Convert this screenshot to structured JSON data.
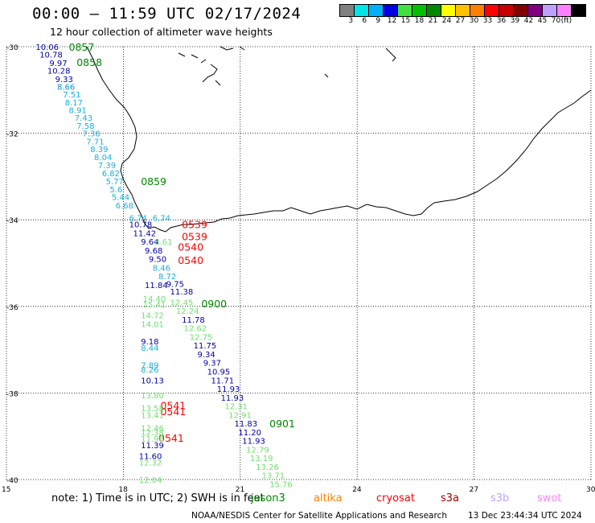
{
  "title": "00:00 — 11:59 UTC 02/17/2024",
  "subtitle": "12 hour collection of altimeter wave heights",
  "legend": {
    "colors": [
      "#808080",
      "#00e5e5",
      "#00b0ff",
      "#0000e0",
      "#40e040",
      "#00c000",
      "#008800",
      "#ffff00",
      "#ffc000",
      "#ff8000",
      "#ff0000",
      "#c80000",
      "#800000",
      "#800080",
      "#c0a0ff",
      "#ff80ff",
      "#000000"
    ],
    "labels": [
      "3",
      "6",
      "9",
      "12",
      "15",
      "18",
      "21",
      "24",
      "27",
      "30",
      "33",
      "36",
      "39",
      "42",
      "45",
      "70",
      "(ft)"
    ]
  },
  "axes": {
    "lat_labels": [
      "-30",
      "-32",
      "-34",
      "-36",
      "-38",
      "-40"
    ],
    "lon_labels": [
      "15",
      "18",
      "21",
      "24",
      "27",
      "30"
    ]
  },
  "passes": [
    {
      "label": "0857",
      "color": "#008800",
      "lon": 16.6,
      "lat": -30.0
    },
    {
      "label": "0858",
      "color": "#008800",
      "lon": 16.8,
      "lat": -30.35
    },
    {
      "label": "0859",
      "color": "#008800",
      "lon": 18.45,
      "lat": -33.1
    },
    {
      "label": "0539",
      "color": "#ff0000",
      "lon": 19.5,
      "lat": -34.1
    },
    {
      "label": "0539",
      "color": "#ff0000",
      "lon": 19.5,
      "lat": -34.38
    },
    {
      "label": "0540",
      "color": "#ff0000",
      "lon": 19.4,
      "lat": -34.62
    },
    {
      "label": "0540",
      "color": "#ff0000",
      "lon": 19.4,
      "lat": -34.93
    },
    {
      "label": "0900",
      "color": "#008800",
      "lon": 20.0,
      "lat": -35.93
    },
    {
      "label": "0541",
      "color": "#ff0000",
      "lon": 18.95,
      "lat": -38.28
    },
    {
      "label": "0541",
      "color": "#ff0000",
      "lon": 18.95,
      "lat": -38.42
    },
    {
      "label": "0541",
      "color": "#ff0000",
      "lon": 18.9,
      "lat": -39.03
    },
    {
      "label": "0901",
      "color": "#008800",
      "lon": 21.75,
      "lat": -38.7
    }
  ],
  "wave_heights": [
    {
      "text": "10.06",
      "color": "#0000aa",
      "lon": 15.75,
      "lat": -30.0
    },
    {
      "text": "10.78",
      "color": "#0000aa",
      "lon": 15.85,
      "lat": -30.18
    },
    {
      "text": "9.97",
      "color": "#0000aa",
      "lon": 16.1,
      "lat": -30.37
    },
    {
      "text": "10.28",
      "color": "#0000aa",
      "lon": 16.05,
      "lat": -30.55
    },
    {
      "text": "9.33",
      "color": "#0000aa",
      "lon": 16.25,
      "lat": -30.74
    },
    {
      "text": "8.66",
      "color": "#1090d0",
      "lon": 16.3,
      "lat": -30.92
    },
    {
      "text": "7.51",
      "color": "#1ab0d8",
      "lon": 16.45,
      "lat": -31.1
    },
    {
      "text": "8.17",
      "color": "#1ab0d8",
      "lon": 16.5,
      "lat": -31.28
    },
    {
      "text": "8.91",
      "color": "#1ab0d8",
      "lon": 16.6,
      "lat": -31.46
    },
    {
      "text": "7.43",
      "color": "#1ab0d8",
      "lon": 16.75,
      "lat": -31.64
    },
    {
      "text": "7.58",
      "color": "#1ab0d8",
      "lon": 16.8,
      "lat": -31.82
    },
    {
      "text": "7.38",
      "color": "#1ab0d8",
      "lon": 16.95,
      "lat": -32.0
    },
    {
      "text": "7.71",
      "color": "#1ab0d8",
      "lon": 17.05,
      "lat": -32.18
    },
    {
      "text": "8.39",
      "color": "#1ab0d8",
      "lon": 17.15,
      "lat": -32.36
    },
    {
      "text": "8.04",
      "color": "#1ab0d8",
      "lon": 17.25,
      "lat": -32.55
    },
    {
      "text": "7.39",
      "color": "#1ab0d8",
      "lon": 17.35,
      "lat": -32.73
    },
    {
      "text": "6.82",
      "color": "#1ab0d8",
      "lon": 17.45,
      "lat": -32.92
    },
    {
      "text": "5.77",
      "color": "#1ab0d8",
      "lon": 17.55,
      "lat": -33.1
    },
    {
      "text": "5.6",
      "color": "#1ab0d8",
      "lon": 17.65,
      "lat": -33.29
    },
    {
      "text": "5.44",
      "color": "#1ab0d8",
      "lon": 17.7,
      "lat": -33.47
    },
    {
      "text": "6.68",
      "color": "#1ab0d8",
      "lon": 17.8,
      "lat": -33.66
    },
    {
      "text": "6.74",
      "color": "#1ab0d8",
      "lon": 18.15,
      "lat": -33.95
    },
    {
      "text": "6.74",
      "color": "#1ab0d8",
      "lon": 18.75,
      "lat": -33.95
    },
    {
      "text": "10.78",
      "color": "#0000aa",
      "lon": 18.15,
      "lat": -34.1
    },
    {
      "text": "11.42",
      "color": "#0000aa",
      "lon": 18.25,
      "lat": -34.3
    },
    {
      "text": "9.64",
      "color": "#0000aa",
      "lon": 18.45,
      "lat": -34.5
    },
    {
      "text": "8.61",
      "color": "#70e070",
      "lon": 18.8,
      "lat": -34.5
    },
    {
      "text": "9.68",
      "color": "#0000aa",
      "lon": 18.55,
      "lat": -34.7
    },
    {
      "text": "9.50",
      "color": "#0000aa",
      "lon": 18.65,
      "lat": -34.9
    },
    {
      "text": "8.46",
      "color": "#1ab0d8",
      "lon": 18.75,
      "lat": -35.1
    },
    {
      "text": "8.72",
      "color": "#1ab0d8",
      "lon": 18.9,
      "lat": -35.3
    },
    {
      "text": "11.84",
      "color": "#0000aa",
      "lon": 18.55,
      "lat": -35.5
    },
    {
      "text": "9.75",
      "color": "#0000aa",
      "lon": 19.1,
      "lat": -35.47
    },
    {
      "text": "11.38",
      "color": "#0000aa",
      "lon": 19.2,
      "lat": -35.65
    },
    {
      "text": "14.40",
      "color": "#70e070",
      "lon": 18.5,
      "lat": -35.82
    },
    {
      "text": "15.41",
      "color": "#70e070",
      "lon": 18.5,
      "lat": -35.95
    },
    {
      "text": "12.45",
      "color": "#70e070",
      "lon": 19.2,
      "lat": -35.9
    },
    {
      "text": "12.24",
      "color": "#70e070",
      "lon": 19.35,
      "lat": -36.1
    },
    {
      "text": "14.72",
      "color": "#70e070",
      "lon": 18.45,
      "lat": -36.2
    },
    {
      "text": "11.78",
      "color": "#0000aa",
      "lon": 19.5,
      "lat": -36.3
    },
    {
      "text": "14.01",
      "color": "#70e070",
      "lon": 18.45,
      "lat": -36.4
    },
    {
      "text": "12.62",
      "color": "#70e070",
      "lon": 19.55,
      "lat": -36.5
    },
    {
      "text": "12.75",
      "color": "#70e070",
      "lon": 19.7,
      "lat": -36.7
    },
    {
      "text": "9.18",
      "color": "#0000aa",
      "lon": 18.45,
      "lat": -36.8
    },
    {
      "text": "11.75",
      "color": "#0000aa",
      "lon": 19.8,
      "lat": -36.9
    },
    {
      "text": "8.44",
      "color": "#1ab0d8",
      "lon": 18.45,
      "lat": -36.95
    },
    {
      "text": "9.34",
      "color": "#0000aa",
      "lon": 19.9,
      "lat": -37.1
    },
    {
      "text": "9.37",
      "color": "#0000aa",
      "lon": 20.05,
      "lat": -37.3
    },
    {
      "text": "7.89",
      "color": "#1ab0d8",
      "lon": 18.45,
      "lat": -37.35
    },
    {
      "text": "8.26",
      "color": "#1ab0d8",
      "lon": 18.45,
      "lat": -37.45
    },
    {
      "text": "10.95",
      "color": "#0000aa",
      "lon": 20.15,
      "lat": -37.5
    },
    {
      "text": "10.13",
      "color": "#0000aa",
      "lon": 18.45,
      "lat": -37.7
    },
    {
      "text": "11.71",
      "color": "#0000aa",
      "lon": 20.25,
      "lat": -37.7
    },
    {
      "text": "11.93",
      "color": "#0000aa",
      "lon": 20.4,
      "lat": -37.9
    },
    {
      "text": "13.80",
      "color": "#70e070",
      "lon": 18.45,
      "lat": -38.05
    },
    {
      "text": "11.93",
      "color": "#0000aa",
      "lon": 20.5,
      "lat": -38.1
    },
    {
      "text": "12.31",
      "color": "#70e070",
      "lon": 20.6,
      "lat": -38.3
    },
    {
      "text": "13.58",
      "color": "#70e070",
      "lon": 18.45,
      "lat": -38.35
    },
    {
      "text": "13.41",
      "color": "#70e070",
      "lon": 18.45,
      "lat": -38.5
    },
    {
      "text": "12.91",
      "color": "#70e070",
      "lon": 20.7,
      "lat": -38.5
    },
    {
      "text": "11.83",
      "color": "#0000aa",
      "lon": 20.85,
      "lat": -38.7
    },
    {
      "text": "12.46",
      "color": "#70e070",
      "lon": 18.45,
      "lat": -38.8
    },
    {
      "text": "12.38",
      "color": "#70e070",
      "lon": 18.45,
      "lat": -38.9
    },
    {
      "text": "11.20",
      "color": "#0000aa",
      "lon": 20.95,
      "lat": -38.9
    },
    {
      "text": "11.98",
      "color": "#70e070",
      "lon": 18.45,
      "lat": -39.05
    },
    {
      "text": "11.93",
      "color": "#0000aa",
      "lon": 21.05,
      "lat": -39.1
    },
    {
      "text": "11.39",
      "color": "#0000aa",
      "lon": 18.45,
      "lat": -39.2
    },
    {
      "text": "12.79",
      "color": "#70e070",
      "lon": 21.15,
      "lat": -39.3
    },
    {
      "text": "11.60",
      "color": "#0000aa",
      "lon": 18.4,
      "lat": -39.45
    },
    {
      "text": "12.32",
      "color": "#70e070",
      "lon": 18.4,
      "lat": -39.6
    },
    {
      "text": "13.19",
      "color": "#70e070",
      "lon": 21.25,
      "lat": -39.5
    },
    {
      "text": "13.26",
      "color": "#70e070",
      "lon": 21.4,
      "lat": -39.7
    },
    {
      "text": "13.71",
      "color": "#70e070",
      "lon": 21.55,
      "lat": -39.9
    },
    {
      "text": "12.04",
      "color": "#70e070",
      "lon": 18.4,
      "lat": -40.0
    },
    {
      "text": "15.76",
      "color": "#70e070",
      "lon": 21.75,
      "lat": -40.1
    }
  ],
  "note_text": "note: 1) Time is in UTC; 2) SWH is in feet",
  "satellites": [
    {
      "name": "jason3",
      "color": "#008800"
    },
    {
      "name": "altika",
      "color": "#ff8000"
    },
    {
      "name": "cryosat",
      "color": "#ff0000"
    },
    {
      "name": "s3a",
      "color": "#a00000"
    },
    {
      "name": "s3b",
      "color": "#c0a0ff"
    },
    {
      "name": "swot",
      "color": "#ff80ff"
    }
  ],
  "footer": "NOAA/NESDIS Center for Satellite Applications and Research",
  "footer_time": "13 Dec 23:44:34 UTC 2024"
}
